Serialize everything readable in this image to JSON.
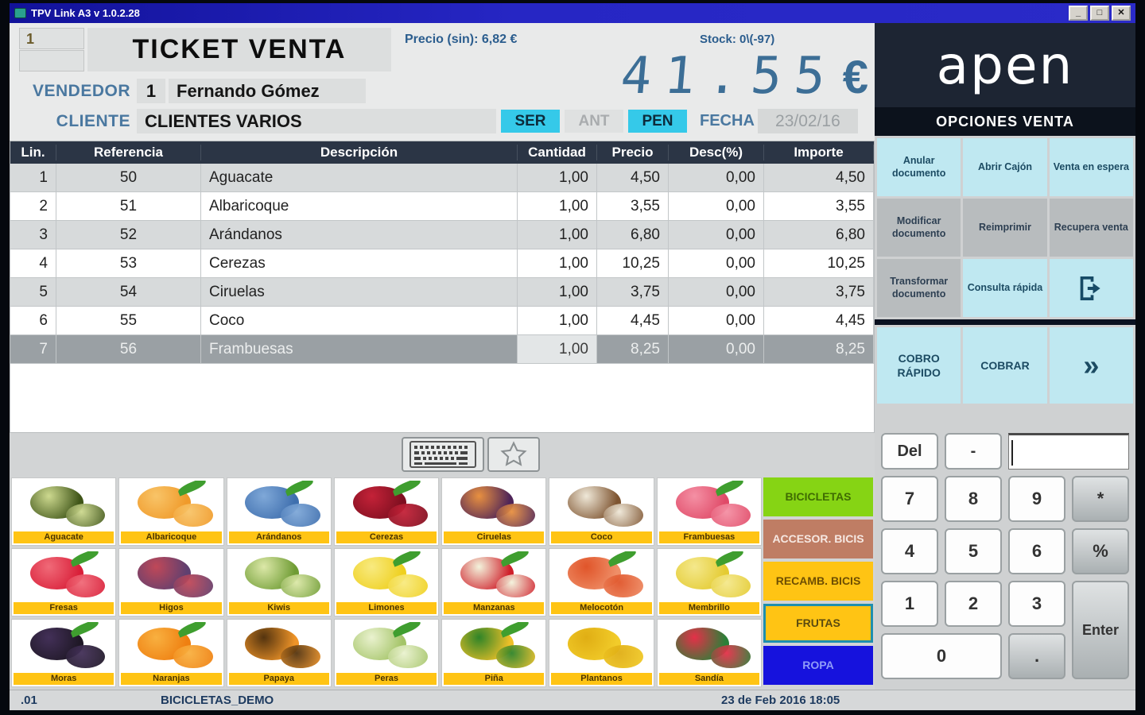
{
  "window": {
    "title": "TPV Link A3 v 1.0.2.28",
    "controls": {
      "minimize": "_",
      "maximize": "□",
      "close": "✕"
    }
  },
  "header": {
    "ticket_number": "1",
    "title": "TICKET VENTA",
    "price_no_tax": "Precio (sin): 6,82 €",
    "stock": "Stock: 0\\(-97)",
    "total_display": "41.55",
    "currency": "€",
    "vendedor_label": "VENDEDOR",
    "vendedor_code": "1",
    "vendedor_name": "Fernando Gómez",
    "cliente_label": "CLIENTE",
    "cliente_name": "CLIENTES VARIOS",
    "buttons": {
      "ser": "SER",
      "ant": "ANT",
      "pen": "PEN"
    },
    "fecha_label": "FECHA",
    "fecha_value": "23/02/16"
  },
  "ticket": {
    "columns": [
      "Lin.",
      "Referencia",
      "Descripción",
      "Cantidad",
      "Precio",
      "Desc(%)",
      "Importe"
    ],
    "rows": [
      {
        "lin": "1",
        "ref": "50",
        "desc": "Aguacate",
        "cant": "1,00",
        "precio": "4,50",
        "dto": "0,00",
        "importe": "4,50",
        "selected": false
      },
      {
        "lin": "2",
        "ref": "51",
        "desc": "Albaricoque",
        "cant": "1,00",
        "precio": "3,55",
        "dto": "0,00",
        "importe": "3,55",
        "selected": false
      },
      {
        "lin": "3",
        "ref": "52",
        "desc": "Arándanos",
        "cant": "1,00",
        "precio": "6,80",
        "dto": "0,00",
        "importe": "6,80",
        "selected": false
      },
      {
        "lin": "4",
        "ref": "53",
        "desc": "Cerezas",
        "cant": "1,00",
        "precio": "10,25",
        "dto": "0,00",
        "importe": "10,25",
        "selected": false
      },
      {
        "lin": "5",
        "ref": "54",
        "desc": "Ciruelas",
        "cant": "1,00",
        "precio": "3,75",
        "dto": "0,00",
        "importe": "3,75",
        "selected": false
      },
      {
        "lin": "6",
        "ref": "55",
        "desc": "Coco",
        "cant": "1,00",
        "precio": "4,45",
        "dto": "0,00",
        "importe": "4,45",
        "selected": false
      },
      {
        "lin": "7",
        "ref": "56",
        "desc": "Frambuesas",
        "cant": "1,00",
        "precio": "8,25",
        "dto": "0,00",
        "importe": "8,25",
        "selected": true
      }
    ]
  },
  "toolbar": {
    "icons": [
      "keyboard-icon",
      "favorites-star-icon"
    ]
  },
  "products": {
    "items": [
      {
        "label": "Aguacate",
        "a": "#3f5518",
        "b": "#cdd98f",
        "leaf": false
      },
      {
        "label": "Albaricoque",
        "a": "#f09a2a",
        "b": "#f8c468",
        "leaf": true
      },
      {
        "label": "Arándanos",
        "a": "#3f6fae",
        "b": "#7fa8d8",
        "leaf": true
      },
      {
        "label": "Cerezas",
        "a": "#7e0f20",
        "b": "#c42238",
        "leaf": true
      },
      {
        "label": "Ciruelas",
        "a": "#4e2458",
        "b": "#e89040",
        "leaf": false
      },
      {
        "label": "Coco",
        "a": "#7e5430",
        "b": "#efe8d8",
        "leaf": false
      },
      {
        "label": "Frambuesas",
        "a": "#e04a68",
        "b": "#f490a4",
        "leaf": true
      },
      {
        "label": "Fresas",
        "a": "#d91f39",
        "b": "#f06a78",
        "leaf": true
      },
      {
        "label": "Higos",
        "a": "#5f4070",
        "b": "#c04858",
        "leaf": false
      },
      {
        "label": "Kiwis",
        "a": "#6f9c34",
        "b": "#dce8a8",
        "leaf": false
      },
      {
        "label": "Limones",
        "a": "#efd01f",
        "b": "#f8ea80",
        "leaf": true
      },
      {
        "label": "Manzanas",
        "a": "#cf1f2a",
        "b": "#f3f3dc",
        "leaf": true
      },
      {
        "label": "Melocotón",
        "a": "#ef8f68",
        "b": "#e0552a",
        "leaf": true
      },
      {
        "label": "Membrillo",
        "a": "#e4cb32",
        "b": "#f4e88c",
        "leaf": true
      },
      {
        "label": "Moras",
        "a": "#1f1826",
        "b": "#433058",
        "leaf": true
      },
      {
        "label": "Naranjas",
        "a": "#ef7f10",
        "b": "#f8b040",
        "leaf": true
      },
      {
        "label": "Papaya",
        "a": "#ef9428",
        "b": "#54340f",
        "leaf": false
      },
      {
        "label": "Peras",
        "a": "#a4c468",
        "b": "#eaf2cf",
        "leaf": true
      },
      {
        "label": "Piña",
        "a": "#eec028",
        "b": "#2f8428",
        "leaf": true
      },
      {
        "label": "Plantanos",
        "a": "#f2cc2a",
        "b": "#e0ae14",
        "leaf": false
      },
      {
        "label": "Sandía",
        "a": "#2a8038",
        "b": "#e43048",
        "leaf": false
      }
    ],
    "label_bar_color": "#ffc414"
  },
  "categories": [
    {
      "label": "BICICLETAS",
      "bg": "#86d414",
      "fg": "#3f6c02",
      "selected": false
    },
    {
      "label": "ACCESOR. BICIS",
      "bg": "#bf7d64",
      "fg": "#f6e8e2",
      "selected": false
    },
    {
      "label": "RECAMB. BICIS",
      "bg": "#ffc414",
      "fg": "#6e4e02",
      "selected": false
    },
    {
      "label": "FRUTAS",
      "bg": "#ffc414",
      "fg": "#5a4a10",
      "selected": true
    },
    {
      "label": "ROPA",
      "bg": "#1612dd",
      "fg": "#8f9cf8",
      "selected": false
    }
  ],
  "sidebar": {
    "brand": "apen",
    "section_title": "OPCIONES VENTA",
    "option_buttons": [
      {
        "label": "Anular documento",
        "style": "cyan"
      },
      {
        "label": "Abrir Cajón",
        "style": "cyan"
      },
      {
        "label": "Venta en espera",
        "style": "cyan"
      },
      {
        "label": "Modificar documento",
        "style": "gray"
      },
      {
        "label": "Reimprimir",
        "style": "gray"
      },
      {
        "label": "Recupera venta",
        "style": "gray"
      },
      {
        "label": "Transformar documento",
        "style": "gray"
      },
      {
        "label": "Consulta rápida",
        "style": "cyan"
      },
      {
        "label": "",
        "style": "cyan",
        "icon": "exit-icon"
      }
    ],
    "pay_buttons": [
      {
        "label": "COBRO RÁPIDO"
      },
      {
        "label": "COBRAR"
      },
      {
        "label": "»",
        "icon": "chevrons-right-icon"
      }
    ]
  },
  "numpad": {
    "input_value": "",
    "top_keys": [
      {
        "label": "Del",
        "style": "white"
      },
      {
        "label": "-",
        "style": "white"
      }
    ],
    "keys": [
      {
        "label": "7",
        "style": "white"
      },
      {
        "label": "8",
        "style": "white"
      },
      {
        "label": "9",
        "style": "white"
      },
      {
        "label": "*",
        "style": "gray"
      },
      {
        "label": "4",
        "style": "white"
      },
      {
        "label": "5",
        "style": "white"
      },
      {
        "label": "6",
        "style": "white"
      },
      {
        "label": "%",
        "style": "gray"
      },
      {
        "label": "1",
        "style": "white"
      },
      {
        "label": "2",
        "style": "white"
      },
      {
        "label": "3",
        "style": "white"
      },
      {
        "label": "Enter",
        "style": "gray",
        "tall": true
      },
      {
        "label": "0",
        "style": "white",
        "wide": true
      },
      {
        "label": ".",
        "style": "gray"
      }
    ]
  },
  "statusbar": {
    "left": ".01",
    "database": "BICICLETAS_DEMO",
    "datetime": "23 de Feb 2016 18:05"
  },
  "colors": {
    "accent_cyan": "#35c9e9",
    "sidebar_cyan": "#bfe8f1",
    "panel_navy": "#1d2533",
    "table_header_navy": "#2b3545",
    "label_yellow": "#ffc414",
    "titlebar_blue": "#2626c4",
    "display_blue": "#3c6e96"
  }
}
